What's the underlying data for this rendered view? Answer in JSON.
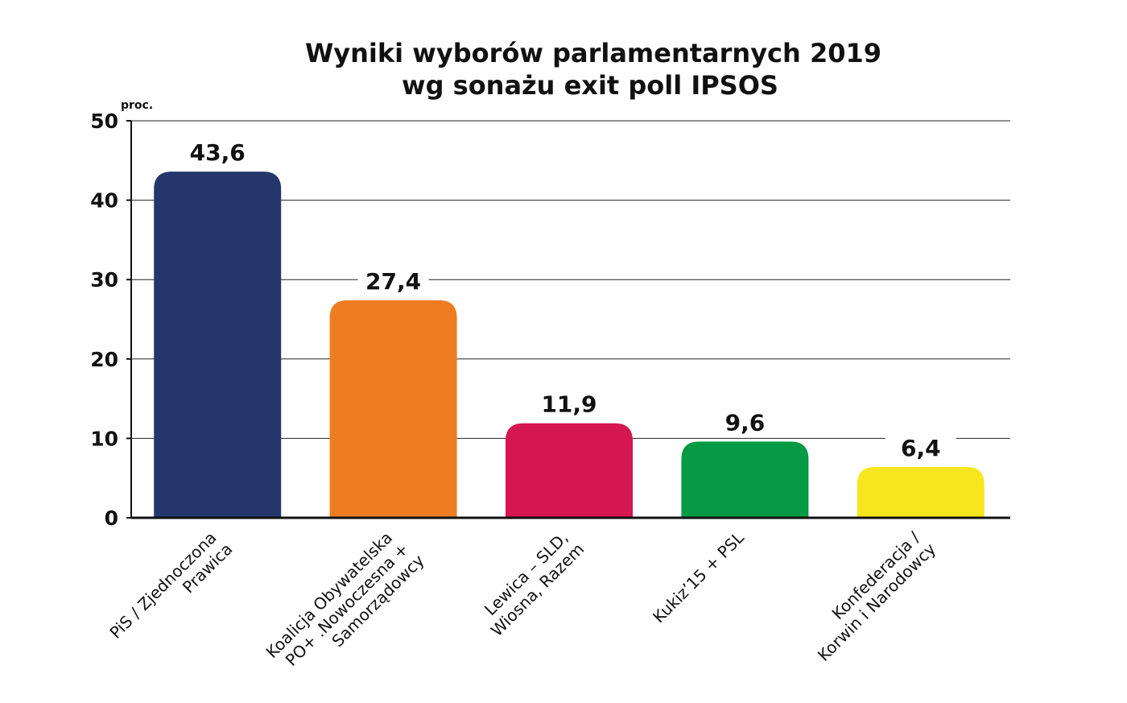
{
  "chart_data": {
    "type": "bar",
    "title": [
      "Wyniki wyborów parlamentarnych 2019",
      "wg sonażu exit poll IPSOS"
    ],
    "ylabel": "proc.",
    "xlabel": "",
    "ylim": [
      0,
      50
    ],
    "yticks": [
      0,
      10,
      20,
      30,
      40,
      50
    ],
    "grid": true,
    "categories": [
      [
        "PiS / Zjednoczona",
        "Prawica"
      ],
      [
        "Koalicja Obywatelska",
        "PO+ .Nowoczesna +",
        "Samorządowcy"
      ],
      [
        "Lewica – SLD,",
        "Wiosna, Razem"
      ],
      [
        "Kukiz’15 + PSL"
      ],
      [
        "Konfederacja /",
        "Korwin i Narodowcy"
      ]
    ],
    "values": [
      43.6,
      27.4,
      11.9,
      9.6,
      6.4
    ],
    "value_labels": [
      "43,6",
      "27,4",
      "11,9",
      "9,6",
      "6,4"
    ],
    "colors": [
      "#23376b",
      "#ee7d22",
      "#d41751",
      "#059a44",
      "#f7e61e"
    ]
  }
}
